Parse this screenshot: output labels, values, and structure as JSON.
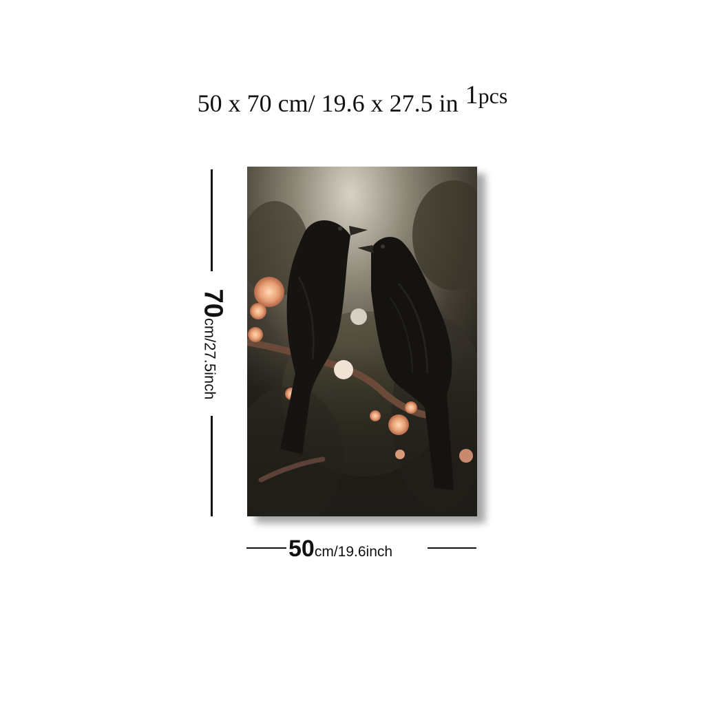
{
  "header": {
    "size_text": "50 x 70 cm/ 19.6 x 27.5 in",
    "qty_number": "1",
    "qty_unit": "pcs"
  },
  "dimensions": {
    "height_value": "70",
    "height_unit_text": "cm/27.5inch",
    "width_value": "50",
    "width_unit_text": "cm/19.6inch"
  },
  "artwork": {
    "subject_icons": [
      "crow-icon",
      "crow-icon",
      "flower-icon",
      "branch-icon"
    ],
    "colors": {
      "background_dark": "#2f2c24",
      "background_light": "#cfc8ba",
      "bird": "#141310",
      "flower": "#e8a074",
      "branch": "#6b4a3a"
    }
  }
}
